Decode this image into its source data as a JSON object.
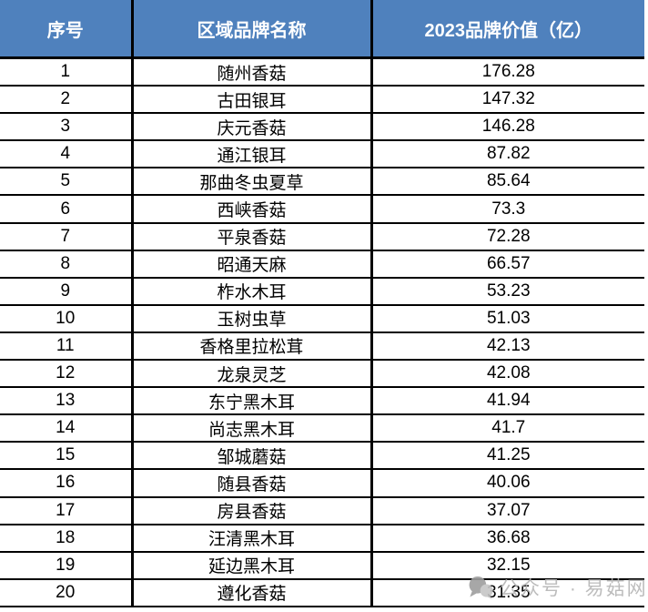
{
  "chart_data": {
    "type": "table",
    "title": "",
    "columns": [
      "序号",
      "区域品牌名称",
      "2023品牌价值（亿）"
    ],
    "rows": [
      [
        "1",
        "随州香菇",
        "176.28"
      ],
      [
        "2",
        "古田银耳",
        "147.32"
      ],
      [
        "3",
        "庆元香菇",
        "146.28"
      ],
      [
        "4",
        "通江银耳",
        "87.82"
      ],
      [
        "5",
        "那曲冬虫夏草",
        "85.64"
      ],
      [
        "6",
        "西峡香菇",
        "73.3"
      ],
      [
        "7",
        "平泉香菇",
        "72.28"
      ],
      [
        "8",
        "昭通天麻",
        "66.57"
      ],
      [
        "9",
        "柞水木耳",
        "53.23"
      ],
      [
        "10",
        "玉树虫草",
        "51.03"
      ],
      [
        "11",
        "香格里拉松茸",
        "42.13"
      ],
      [
        "12",
        "龙泉灵芝",
        "42.08"
      ],
      [
        "13",
        "东宁黑木耳",
        "41.94"
      ],
      [
        "14",
        "尚志黑木耳",
        "41.7"
      ],
      [
        "15",
        "邹城蘑菇",
        "41.25"
      ],
      [
        "16",
        "随县香菇",
        "40.06"
      ],
      [
        "17",
        "房县香菇",
        "37.07"
      ],
      [
        "18",
        "汪清黑木耳",
        "36.68"
      ],
      [
        "19",
        "延边黑木耳",
        "32.15"
      ],
      [
        "20",
        "遵化香菇",
        "31.35"
      ]
    ]
  },
  "watermark": {
    "label": "公众号 · 易菇网",
    "icon": "wechat-bubbles-icon"
  },
  "colors": {
    "header_bg": "#4F81BD",
    "header_text": "#FFFFFF",
    "border": "#000000",
    "body_text": "#000000",
    "watermark_text": "#B5B5B5"
  }
}
